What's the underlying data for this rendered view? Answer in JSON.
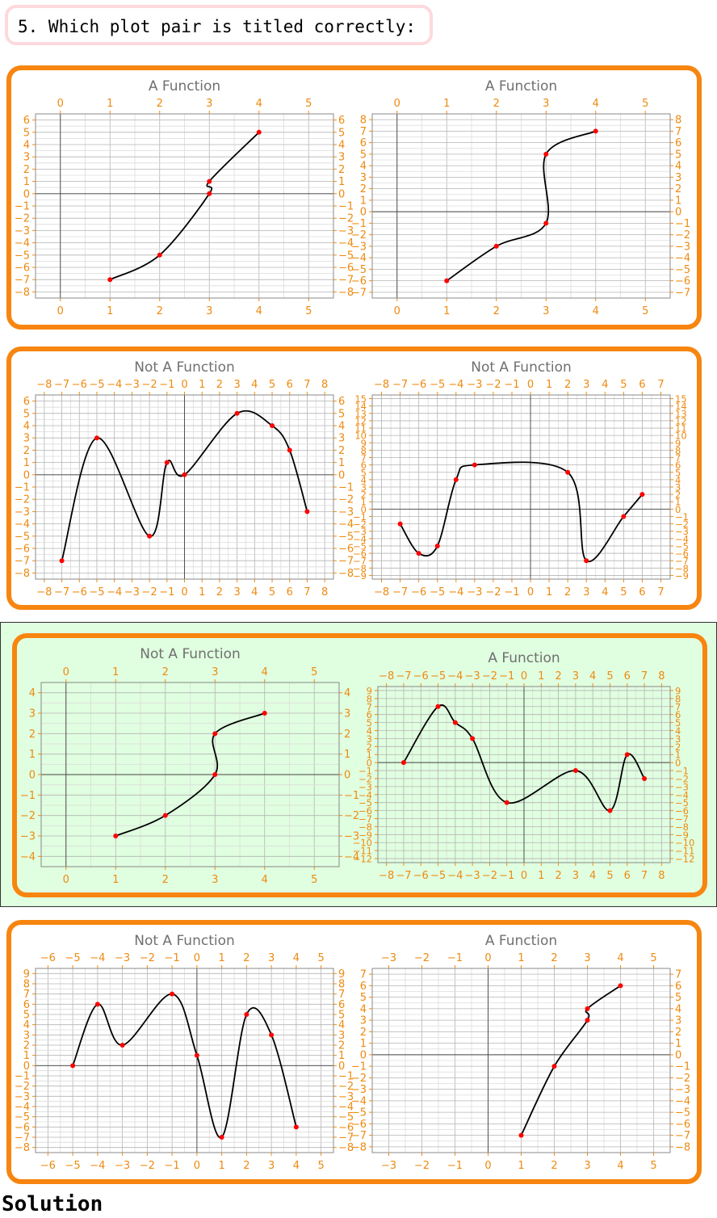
{
  "question": "5. Which plot pair is titled correctly:",
  "solution_label": "Solution",
  "colors": {
    "accent": "#f7850f",
    "question_border": "#fdd9dd",
    "correct_bg": "#e0fee0",
    "point": "#ff0000",
    "tick": "#ee8a10",
    "title": "#707070"
  },
  "options": [
    {
      "id": "option-1",
      "correct": false,
      "plots": [
        {
          "title": "A Function"
        },
        {
          "title": "A Function"
        }
      ]
    },
    {
      "id": "option-2",
      "correct": false,
      "plots": [
        {
          "title": "Not A Function"
        },
        {
          "title": "Not A Function"
        }
      ]
    },
    {
      "id": "option-3",
      "correct": true,
      "plots": [
        {
          "title": "Not A Function"
        },
        {
          "title": "A Function"
        }
      ]
    },
    {
      "id": "option-4",
      "correct": false,
      "plots": [
        {
          "title": "Not A Function"
        },
        {
          "title": "A Function"
        }
      ]
    }
  ],
  "chart_data": [
    {
      "type": "line",
      "title": "A Function",
      "xlim": [
        -0.5,
        5.5
      ],
      "ylim": [
        -8.5,
        6.5
      ],
      "xticks": [
        0,
        1,
        2,
        3,
        4,
        5
      ],
      "yticks": [
        -8,
        -7,
        -6,
        -5,
        -4,
        -3,
        -2,
        -1,
        0,
        1,
        2,
        3,
        4,
        5,
        6
      ],
      "points": [
        [
          1,
          -7
        ],
        [
          2,
          -5
        ],
        [
          3,
          0
        ],
        [
          3,
          1
        ],
        [
          4,
          5
        ]
      ]
    },
    {
      "type": "line",
      "title": "A Function",
      "xlim": [
        -0.5,
        5.5
      ],
      "ylim": [
        -7.5,
        8.5
      ],
      "xticks": [
        0,
        1,
        2,
        3,
        4,
        5
      ],
      "yticks": [
        -7,
        -6,
        -5,
        -4,
        -3,
        -2,
        -1,
        0,
        1,
        2,
        3,
        4,
        5,
        6,
        7,
        8
      ],
      "points": [
        [
          1,
          -6
        ],
        [
          2,
          -3
        ],
        [
          3,
          -1
        ],
        [
          3,
          5
        ],
        [
          4,
          7
        ]
      ]
    },
    {
      "type": "line",
      "title": "Not A Function",
      "xlim": [
        -8.5,
        8.5
      ],
      "ylim": [
        -8.5,
        6.5
      ],
      "xticks": [
        -8,
        -7,
        -6,
        -5,
        -4,
        -3,
        -2,
        -1,
        0,
        1,
        2,
        3,
        4,
        5,
        6,
        7,
        8
      ],
      "yticks": [
        -8,
        -7,
        -6,
        -5,
        -4,
        -3,
        -2,
        -1,
        0,
        1,
        2,
        3,
        4,
        5,
        6
      ],
      "points": [
        [
          -7,
          -7
        ],
        [
          -5,
          3
        ],
        [
          -2,
          -5
        ],
        [
          -1,
          1
        ],
        [
          0,
          0
        ],
        [
          3,
          5
        ],
        [
          5,
          4
        ],
        [
          6,
          2
        ],
        [
          7,
          -3
        ]
      ]
    },
    {
      "type": "line",
      "title": "Not A Function",
      "xlim": [
        -8.5,
        7.5
      ],
      "ylim": [
        -9.5,
        15.5
      ],
      "xticks": [
        -8,
        -7,
        -6,
        -5,
        -4,
        -3,
        -2,
        -1,
        0,
        1,
        2,
        3,
        4,
        5,
        6,
        7
      ],
      "yticks": [
        -9,
        -8,
        -7,
        -6,
        -5,
        -4,
        -3,
        -2,
        -1,
        0,
        1,
        2,
        3,
        4,
        5,
        6,
        7,
        8,
        9,
        10,
        11,
        12,
        13,
        14,
        15
      ],
      "points": [
        [
          -7,
          -2
        ],
        [
          -6,
          -6
        ],
        [
          -5,
          -5
        ],
        [
          -4,
          4
        ],
        [
          -3,
          6
        ],
        [
          2,
          5
        ],
        [
          3,
          -7
        ],
        [
          5,
          -1
        ],
        [
          6,
          2
        ]
      ]
    },
    {
      "type": "line",
      "title": "Not A Function",
      "xlim": [
        -0.5,
        5.5
      ],
      "ylim": [
        -4.5,
        4.5
      ],
      "xticks": [
        0,
        1,
        2,
        3,
        4,
        5
      ],
      "yticks": [
        -4,
        -3,
        -2,
        -1,
        0,
        1,
        2,
        3,
        4
      ],
      "points": [
        [
          1,
          -3
        ],
        [
          2,
          -2
        ],
        [
          3,
          0
        ],
        [
          3,
          2
        ],
        [
          4,
          3
        ]
      ]
    },
    {
      "type": "line",
      "title": "A Function",
      "xlim": [
        -8.5,
        8.5
      ],
      "ylim": [
        -12.5,
        9.5
      ],
      "xticks": [
        -8,
        -7,
        -6,
        -5,
        -4,
        -3,
        -2,
        -1,
        0,
        1,
        2,
        3,
        4,
        5,
        6,
        7,
        8
      ],
      "yticks": [
        -12,
        -11,
        -10,
        -9,
        -8,
        -7,
        -6,
        -5,
        -4,
        -3,
        -2,
        -1,
        0,
        1,
        2,
        3,
        4,
        5,
        6,
        7,
        8,
        9
      ],
      "points": [
        [
          -7,
          0
        ],
        [
          -5,
          7
        ],
        [
          -4,
          5
        ],
        [
          -3,
          3
        ],
        [
          -1,
          -5
        ],
        [
          3,
          -1
        ],
        [
          5,
          -6
        ],
        [
          6,
          1
        ],
        [
          7,
          -2
        ]
      ]
    },
    {
      "type": "line",
      "title": "Not A Function",
      "xlim": [
        -6.5,
        5.5
      ],
      "ylim": [
        -8.5,
        9.5
      ],
      "xticks": [
        -6,
        -5,
        -4,
        -3,
        -2,
        -1,
        0,
        1,
        2,
        3,
        4,
        5
      ],
      "yticks": [
        -8,
        -7,
        -6,
        -5,
        -4,
        -3,
        -2,
        -1,
        0,
        1,
        2,
        3,
        4,
        5,
        6,
        7,
        8,
        9
      ],
      "points": [
        [
          -5,
          0
        ],
        [
          -4,
          6
        ],
        [
          -3,
          2
        ],
        [
          -1,
          7
        ],
        [
          0,
          1
        ],
        [
          1,
          -7
        ],
        [
          2,
          5
        ],
        [
          3,
          3
        ],
        [
          4,
          -6
        ]
      ]
    },
    {
      "type": "line",
      "title": "A Function",
      "xlim": [
        -3.5,
        5.5
      ],
      "ylim": [
        -8.5,
        7.5
      ],
      "xticks": [
        -3,
        -2,
        -1,
        0,
        1,
        2,
        3,
        4,
        5
      ],
      "yticks": [
        -8,
        -7,
        -6,
        -5,
        -4,
        -3,
        -2,
        -1,
        0,
        1,
        2,
        3,
        4,
        5,
        6,
        7
      ],
      "points": [
        [
          1,
          -7
        ],
        [
          2,
          -1
        ],
        [
          3,
          3
        ],
        [
          3,
          4
        ],
        [
          4,
          6
        ]
      ]
    }
  ]
}
